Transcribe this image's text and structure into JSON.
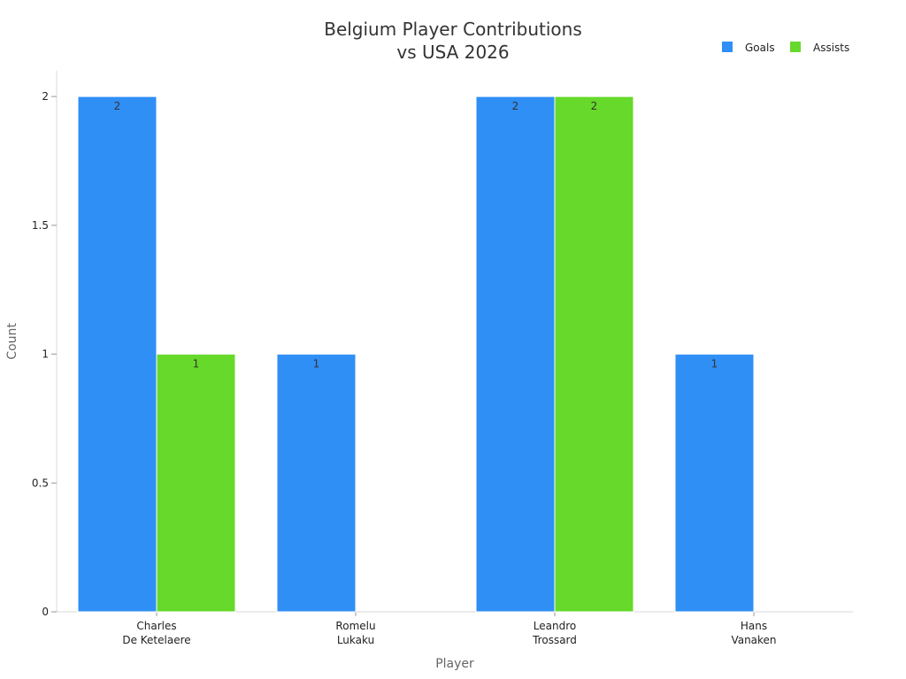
{
  "chart_data": {
    "type": "bar",
    "title": [
      "Belgium Player Contributions",
      "vs USA 2026"
    ],
    "xlabel": "Player",
    "ylabel": "Count",
    "categories": [
      [
        "Charles",
        "De Ketelaere"
      ],
      [
        "Romelu",
        "Lukaku"
      ],
      [
        "Leandro",
        "Trossard"
      ],
      [
        "Hans",
        "Vanaken"
      ]
    ],
    "series": [
      {
        "name": "Goals",
        "color": "#2f8ff5",
        "values": [
          2,
          1,
          2,
          1
        ]
      },
      {
        "name": "Assists",
        "color": "#66d92a",
        "values": [
          1,
          0,
          2,
          0
        ]
      }
    ],
    "ylim": [
      0,
      2.1
    ],
    "yticks": [
      {
        "value": 0,
        "label": "0"
      },
      {
        "value": 0.5,
        "label": "0.5"
      },
      {
        "value": 1,
        "label": "1"
      },
      {
        "value": 1.5,
        "label": "1.5"
      },
      {
        "value": 2,
        "label": "2"
      }
    ],
    "grid": false,
    "legend_position": "top-right"
  }
}
